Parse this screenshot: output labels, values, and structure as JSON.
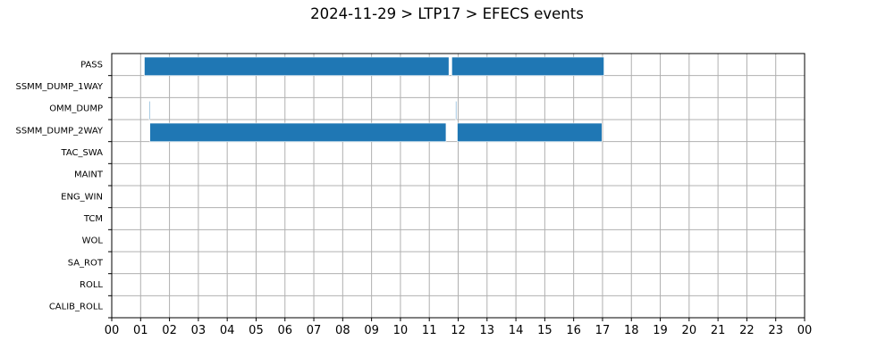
{
  "title": "2024-11-29 > LTP17 > EFECS events",
  "chart_data": {
    "type": "bar",
    "orientation": "horizontal-timeline",
    "title": "2024-11-29 > LTP17 > EFECS events",
    "xlabel": "",
    "ylabel": "",
    "xlim": [
      0,
      24
    ],
    "x_unit": "hours",
    "xticks": [
      "00",
      "01",
      "02",
      "03",
      "04",
      "05",
      "06",
      "07",
      "08",
      "09",
      "10",
      "11",
      "12",
      "13",
      "14",
      "15",
      "16",
      "17",
      "18",
      "19",
      "20",
      "21",
      "22",
      "23",
      "00"
    ],
    "categories": [
      "PASS",
      "SSMM_DUMP_1WAY",
      "OMM_DUMP",
      "SSMM_DUMP_2WAY",
      "TAC_SWA",
      "MAINT",
      "ENG_WIN",
      "TCM",
      "WOL",
      "SA_ROT",
      "ROLL",
      "CALIB_ROLL"
    ],
    "bar_color": "#1f77b4",
    "grid": true,
    "segments": [
      {
        "event": "PASS",
        "start": 1.13,
        "end": 11.68
      },
      {
        "event": "PASS",
        "start": 11.78,
        "end": 17.05
      },
      {
        "event": "OMM_DUMP",
        "start": 1.29,
        "end": 1.32
      },
      {
        "event": "OMM_DUMP",
        "start": 11.91,
        "end": 11.94
      },
      {
        "event": "SSMM_DUMP_2WAY",
        "start": 1.32,
        "end": 11.58
      },
      {
        "event": "SSMM_DUMP_2WAY",
        "start": 11.97,
        "end": 16.98
      }
    ]
  }
}
